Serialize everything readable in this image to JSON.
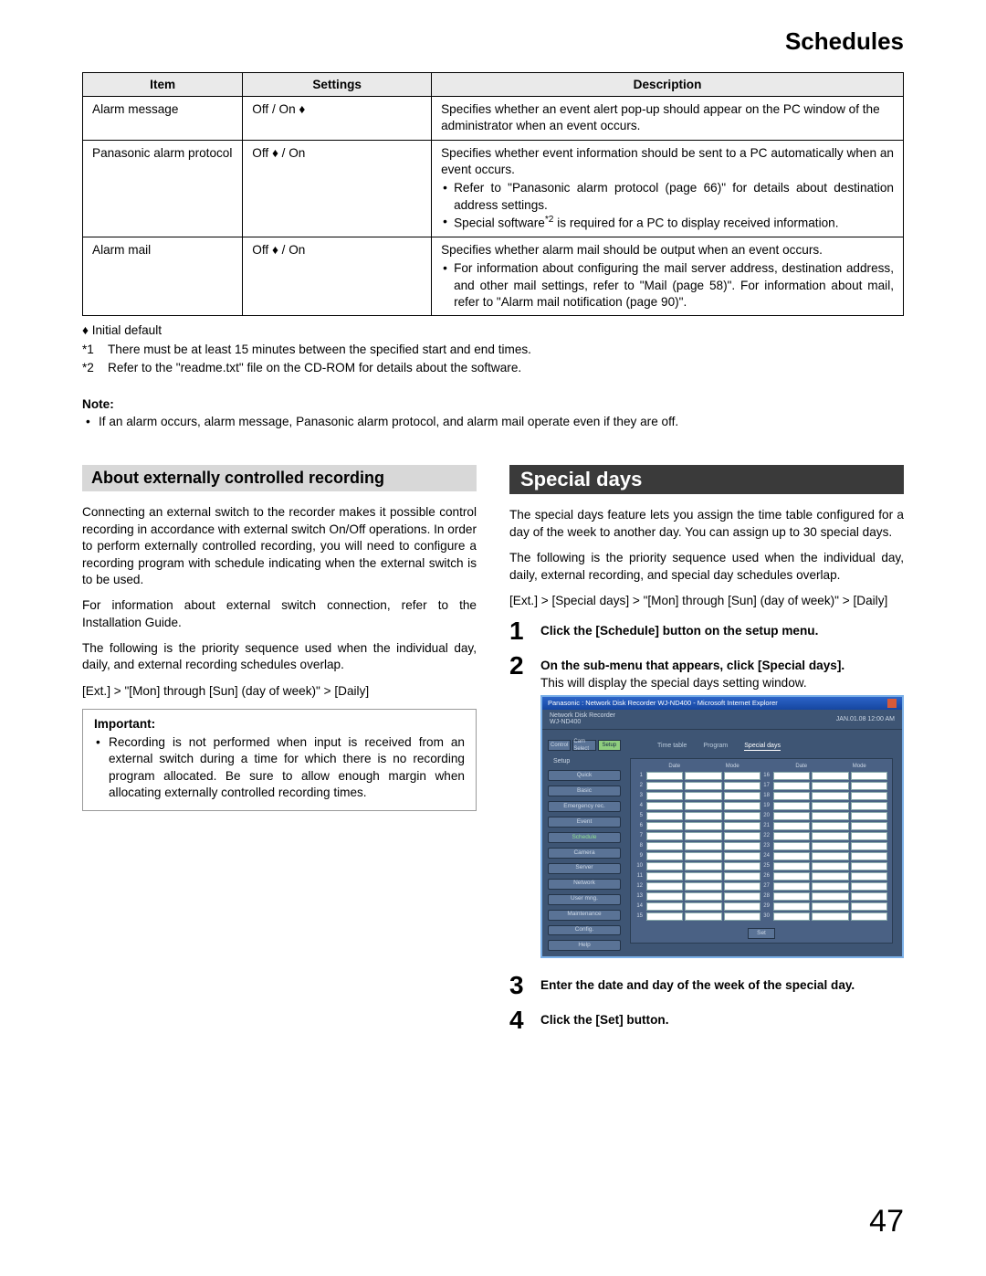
{
  "page_title": "Schedules",
  "page_number": "47",
  "table": {
    "headers": [
      "Item",
      "Settings",
      "Description"
    ],
    "rows": [
      {
        "item": "Alarm message",
        "settings": "Off / On ♦",
        "desc_lead": "Specifies whether an event alert pop-up should appear on the PC window of the administrator when an event occurs."
      },
      {
        "item": "Panasonic alarm protocol",
        "settings": "Off ♦ / On",
        "desc_lead": "Specifies whether event information should be sent to a PC automatically when an event occurs.",
        "bullets": [
          "Refer to \"Panasonic alarm protocol (page 66)\" for details about destination address settings.",
          "Special software*2 is required for a PC to display received information."
        ]
      },
      {
        "item": "Alarm mail",
        "settings": "Off ♦ / On",
        "desc_lead": "Specifies whether alarm mail should be output when an event occurs.",
        "bullets": [
          "For information about configuring the mail server address, destination address, and other mail settings, refer to \"Mail (page 58)\". For information about mail, refer to \"Alarm mail notification (page 90)\"."
        ]
      }
    ]
  },
  "footnotes": {
    "diamond": "♦ Initial default",
    "f1_mark": "*1",
    "f1": "There must be at least 15 minutes between the specified start and end times.",
    "f2_mark": "*2",
    "f2": "Refer to the \"readme.txt\" file on the CD-ROM for details about the software."
  },
  "note": {
    "heading": "Note:",
    "item": "If an alarm occurs, alarm message, Panasonic alarm protocol, and alarm mail operate even if they are off."
  },
  "left": {
    "heading": "About externally controlled recording",
    "p1": "Connecting an external switch to the recorder makes it possible control recording in accordance with external switch On/Off operations. In order to perform externally controlled recording, you will need to configure a recording program with schedule indicating when the external switch is to be used.",
    "p2": "For information about external switch connection, refer to the Installation Guide.",
    "p3": "The following is the priority sequence used when the individual day, daily, and external recording schedules overlap.",
    "p4": "[Ext.] > \"[Mon] through [Sun] (day of week)\" > [Daily]",
    "important_hd": "Important:",
    "important_item": "Recording is not performed when input is received from an external switch during a time for which there is no recording program allocated. Be sure to allow enough margin when allocating externally controlled recording times."
  },
  "right": {
    "heading": "Special days",
    "p1": "The special days feature lets you assign the time table configured for a day of the week to another day. You can assign up to 30 special days.",
    "p2": "The following is the priority sequence used when the individual day, daily, external recording, and special day schedules overlap.",
    "p3": "[Ext.] > [Special days] > \"[Mon] through [Sun] (day of week)\" > [Daily]",
    "steps": {
      "s1": "Click the [Schedule] button on the setup menu.",
      "s2a": "On the sub-menu that appears, click [Special days].",
      "s2b": "This will display the special days setting window.",
      "s3": "Enter the date and day of the week of the special day.",
      "s4": "Click the [Set] button."
    }
  },
  "shot": {
    "title": "Panasonic : Network Disk Recorder WJ-ND400 - Microsoft Internet Explorer",
    "brand_l1": "Network Disk Recorder",
    "brand_l2": "WJ-ND400",
    "time": "JAN.01.08  12:00  AM",
    "topbtns": [
      "Control",
      "Cam Select",
      "Setup"
    ],
    "section": "Setup",
    "side": [
      "Quick",
      "Basic",
      "Emergency rec.",
      "Event",
      "Schedule",
      "Camera",
      "Server",
      "Network",
      "User mng.",
      "Maintenance",
      "Config.",
      "Help"
    ],
    "tabs": [
      "Time table",
      "Program",
      "Special days"
    ],
    "grid_hd": [
      "Date",
      "Mode",
      "Date",
      "Mode"
    ],
    "setbtn": "Set"
  }
}
